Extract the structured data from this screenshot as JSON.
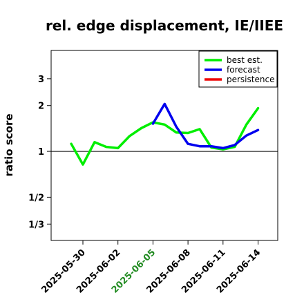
{
  "chart_data": {
    "type": "line",
    "title": "rel. edge displacement, IE/IIEE",
    "ylabel": "ratio score",
    "xlabel": "",
    "x_start": "2025-05-28",
    "x_tick_labels": [
      "2025-05-30",
      "2025-06-02",
      "2025-06-05",
      "2025-06-08",
      "2025-06-11",
      "2025-06-14"
    ],
    "x_tick_colors": [
      "#000000",
      "#000000",
      "#228B22",
      "#000000",
      "#000000",
      "#000000"
    ],
    "y_scale": "log2",
    "y_ticks": [
      {
        "value": 0.333,
        "label": "1/3"
      },
      {
        "value": 0.5,
        "label": "1/2"
      },
      {
        "value": 1,
        "label": "1"
      },
      {
        "value": 2,
        "label": "2"
      },
      {
        "value": 3,
        "label": "3"
      }
    ],
    "ylim": [
      0.26,
      4.6
    ],
    "reference_line": 1,
    "legend_position": "top-right",
    "series": [
      {
        "name": "best est.",
        "color": "#00ee00",
        "x": [
          "2025-05-29",
          "2025-05-30",
          "2025-05-31",
          "2025-06-01",
          "2025-06-02",
          "2025-06-03",
          "2025-06-04",
          "2025-06-05",
          "2025-06-06",
          "2025-06-07",
          "2025-06-08",
          "2025-06-09",
          "2025-06-10",
          "2025-06-11",
          "2025-06-12",
          "2025-06-13",
          "2025-06-14"
        ],
        "values": [
          1.12,
          0.82,
          1.15,
          1.07,
          1.05,
          1.26,
          1.42,
          1.55,
          1.5,
          1.33,
          1.32,
          1.4,
          1.06,
          1.03,
          1.07,
          1.5,
          1.92
        ]
      },
      {
        "name": "forecast",
        "color": "#0000ee",
        "x": [
          "2025-06-05",
          "2025-06-06",
          "2025-06-07",
          "2025-06-08",
          "2025-06-09",
          "2025-06-10",
          "2025-06-11",
          "2025-06-12",
          "2025-06-13",
          "2025-06-14"
        ],
        "values": [
          1.52,
          2.05,
          1.45,
          1.12,
          1.08,
          1.08,
          1.05,
          1.1,
          1.27,
          1.38
        ]
      },
      {
        "name": "persistence",
        "color": "#ee0000",
        "x": [],
        "values": []
      }
    ]
  }
}
